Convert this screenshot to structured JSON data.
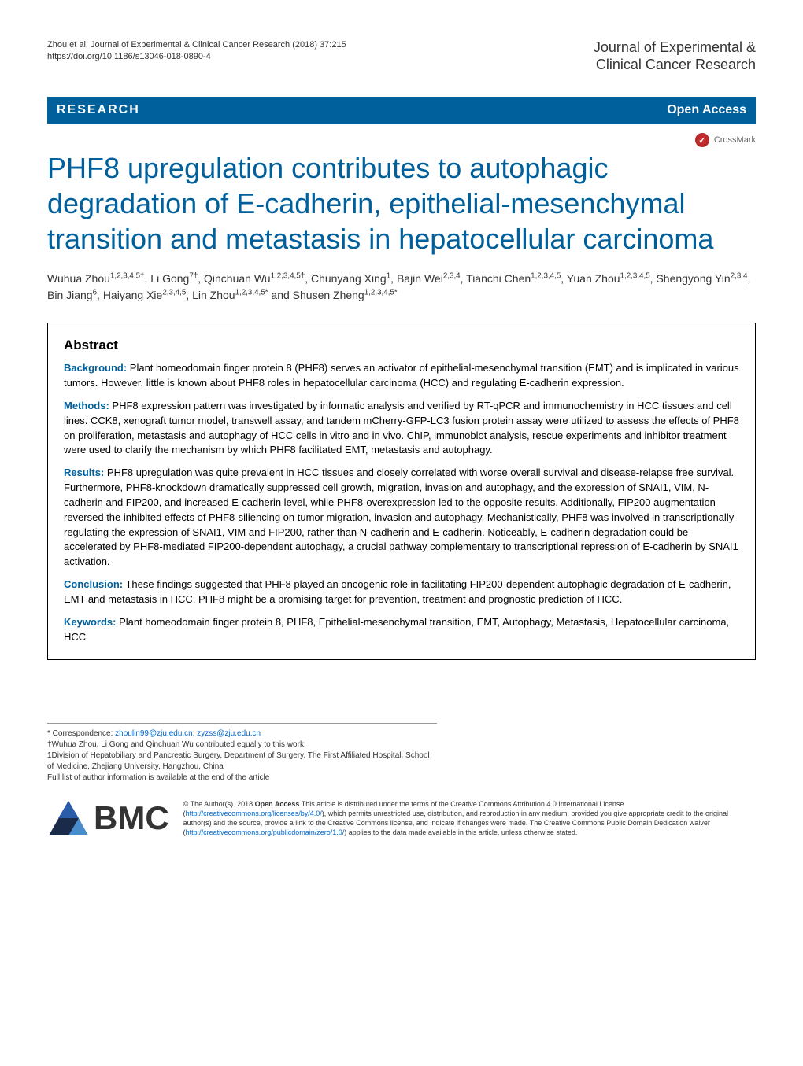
{
  "header": {
    "citation_line1": "Zhou et al. Journal of Experimental & Clinical Cancer Research  (2018) 37:215",
    "citation_line2": "https://doi.org/10.1186/s13046-018-0890-4",
    "journal_line1": "Journal of Experimental &",
    "journal_line2": "Clinical Cancer Research"
  },
  "bar": {
    "research": "RESEARCH",
    "open_access": "Open Access"
  },
  "crossmark": {
    "label": "CrossMark",
    "symbol": "✓"
  },
  "title": "PHF8 upregulation contributes to autophagic degradation of E-cadherin, epithelial-mesenchymal transition and metastasis in hepatocellular carcinoma",
  "authors_html": "Wuhua Zhou<sup>1,2,3,4,5†</sup>, Li Gong<sup>7†</sup>, Qinchuan Wu<sup>1,2,3,4,5†</sup>, Chunyang Xing<sup>1</sup>, Bajin Wei<sup>2,3,4</sup>, Tianchi Chen<sup>1,2,3,4,5</sup>, Yuan Zhou<sup>1,2,3,4,5</sup>, Shengyong Yin<sup>2,3,4</sup>, Bin Jiang<sup>6</sup>, Haiyang Xie<sup>2,3,4,5</sup>, Lin Zhou<sup>1,2,3,4,5*</sup> and Shusen Zheng<sup>1,2,3,4,5*</sup>",
  "abstract": {
    "heading": "Abstract",
    "background_label": "Background:",
    "background_text": " Plant homeodomain finger protein 8 (PHF8) serves an activator of epithelial-mesenchymal transition (EMT) and is implicated in various tumors. However, little is known about PHF8 roles in hepatocellular carcinoma (HCC) and regulating E-cadherin expression.",
    "methods_label": "Methods:",
    "methods_text": " PHF8 expression pattern was investigated by informatic analysis and verified by RT-qPCR and immunochemistry in HCC tissues and cell lines. CCK8, xenograft tumor model, transwell assay, and tandem mCherry-GFP-LC3 fusion protein assay were utilized to assess the effects of PHF8 on proliferation, metastasis and autophagy of HCC cells in vitro and in vivo. ChIP, immunoblot analysis, rescue experiments and inhibitor treatment were used to clarify the mechanism by which PHF8 facilitated EMT, metastasis and autophagy.",
    "results_label": "Results:",
    "results_text": " PHF8 upregulation was quite prevalent in HCC tissues and closely correlated with worse overall survival and disease-relapse free survival. Furthermore, PHF8-knockdown dramatically suppressed cell growth, migration, invasion and autophagy, and the expression of SNAI1, VIM, N-cadherin and FIP200, and increased E-cadherin level, while PHF8-overexpression led to the opposite results. Additionally, FIP200 augmentation reversed the inhibited effects of PHF8-siliencing on tumor migration, invasion and autophagy. Mechanistically, PHF8 was involved in transcriptionally regulating the expression of SNAI1, VIM and FIP200, rather than N-cadherin and E-cadherin. Noticeably, E-cadherin degradation could be accelerated by PHF8-mediated FIP200-dependent autophagy, a crucial pathway complementary to transcriptional repression of E-cadherin by SNAI1 activation.",
    "conclusion_label": "Conclusion:",
    "conclusion_text": " These findings suggested that PHF8 played an oncogenic role in facilitating FIP200-dependent autophagic degradation of E-cadherin, EMT and metastasis in HCC. PHF8 might be a promising target for prevention, treatment and prognostic prediction of HCC.",
    "keywords_label": "Keywords:",
    "keywords_text": " Plant homeodomain finger protein 8, PHF8, Epithelial-mesenchymal transition, EMT, Autophagy, Metastasis, Hepatocellular carcinoma, HCC"
  },
  "footer": {
    "correspondence_label": "* Correspondence: ",
    "email1": "zhoulin99@zju.edu.cn",
    "email_sep": "; ",
    "email2": "zyzss@zju.edu.cn",
    "contrib": "†Wuhua Zhou, Li Gong and Qinchuan Wu contributed equally to this work.",
    "affil1": "1Division of Hepatobiliary and Pancreatic Surgery, Department of Surgery, The First Affiliated Hospital, School of Medicine, Zhejiang University, Hangzhou, China",
    "full_list": "Full list of author information is available at the end of the article"
  },
  "bmc": {
    "label": "BMC"
  },
  "license": {
    "text_prefix": "© The Author(s). 2018 ",
    "open_access_bold": "Open Access",
    "text_body": " This article is distributed under the terms of the Creative Commons Attribution 4.0 International License (",
    "link1": "http://creativecommons.org/licenses/by/4.0/",
    "text_body2": "), which permits unrestricted use, distribution, and reproduction in any medium, provided you give appropriate credit to the original author(s) and the source, provide a link to the Creative Commons license, and indicate if changes were made. The Creative Commons Public Domain Dedication waiver (",
    "link2": "http://creativecommons.org/publicdomain/zero/1.0/",
    "text_body3": ") applies to the data made available in this article, unless otherwise stated."
  },
  "colors": {
    "brand_blue": "#00609c",
    "link_blue": "#0066cc",
    "text": "#333333",
    "crossmark_red": "#cc3333"
  }
}
